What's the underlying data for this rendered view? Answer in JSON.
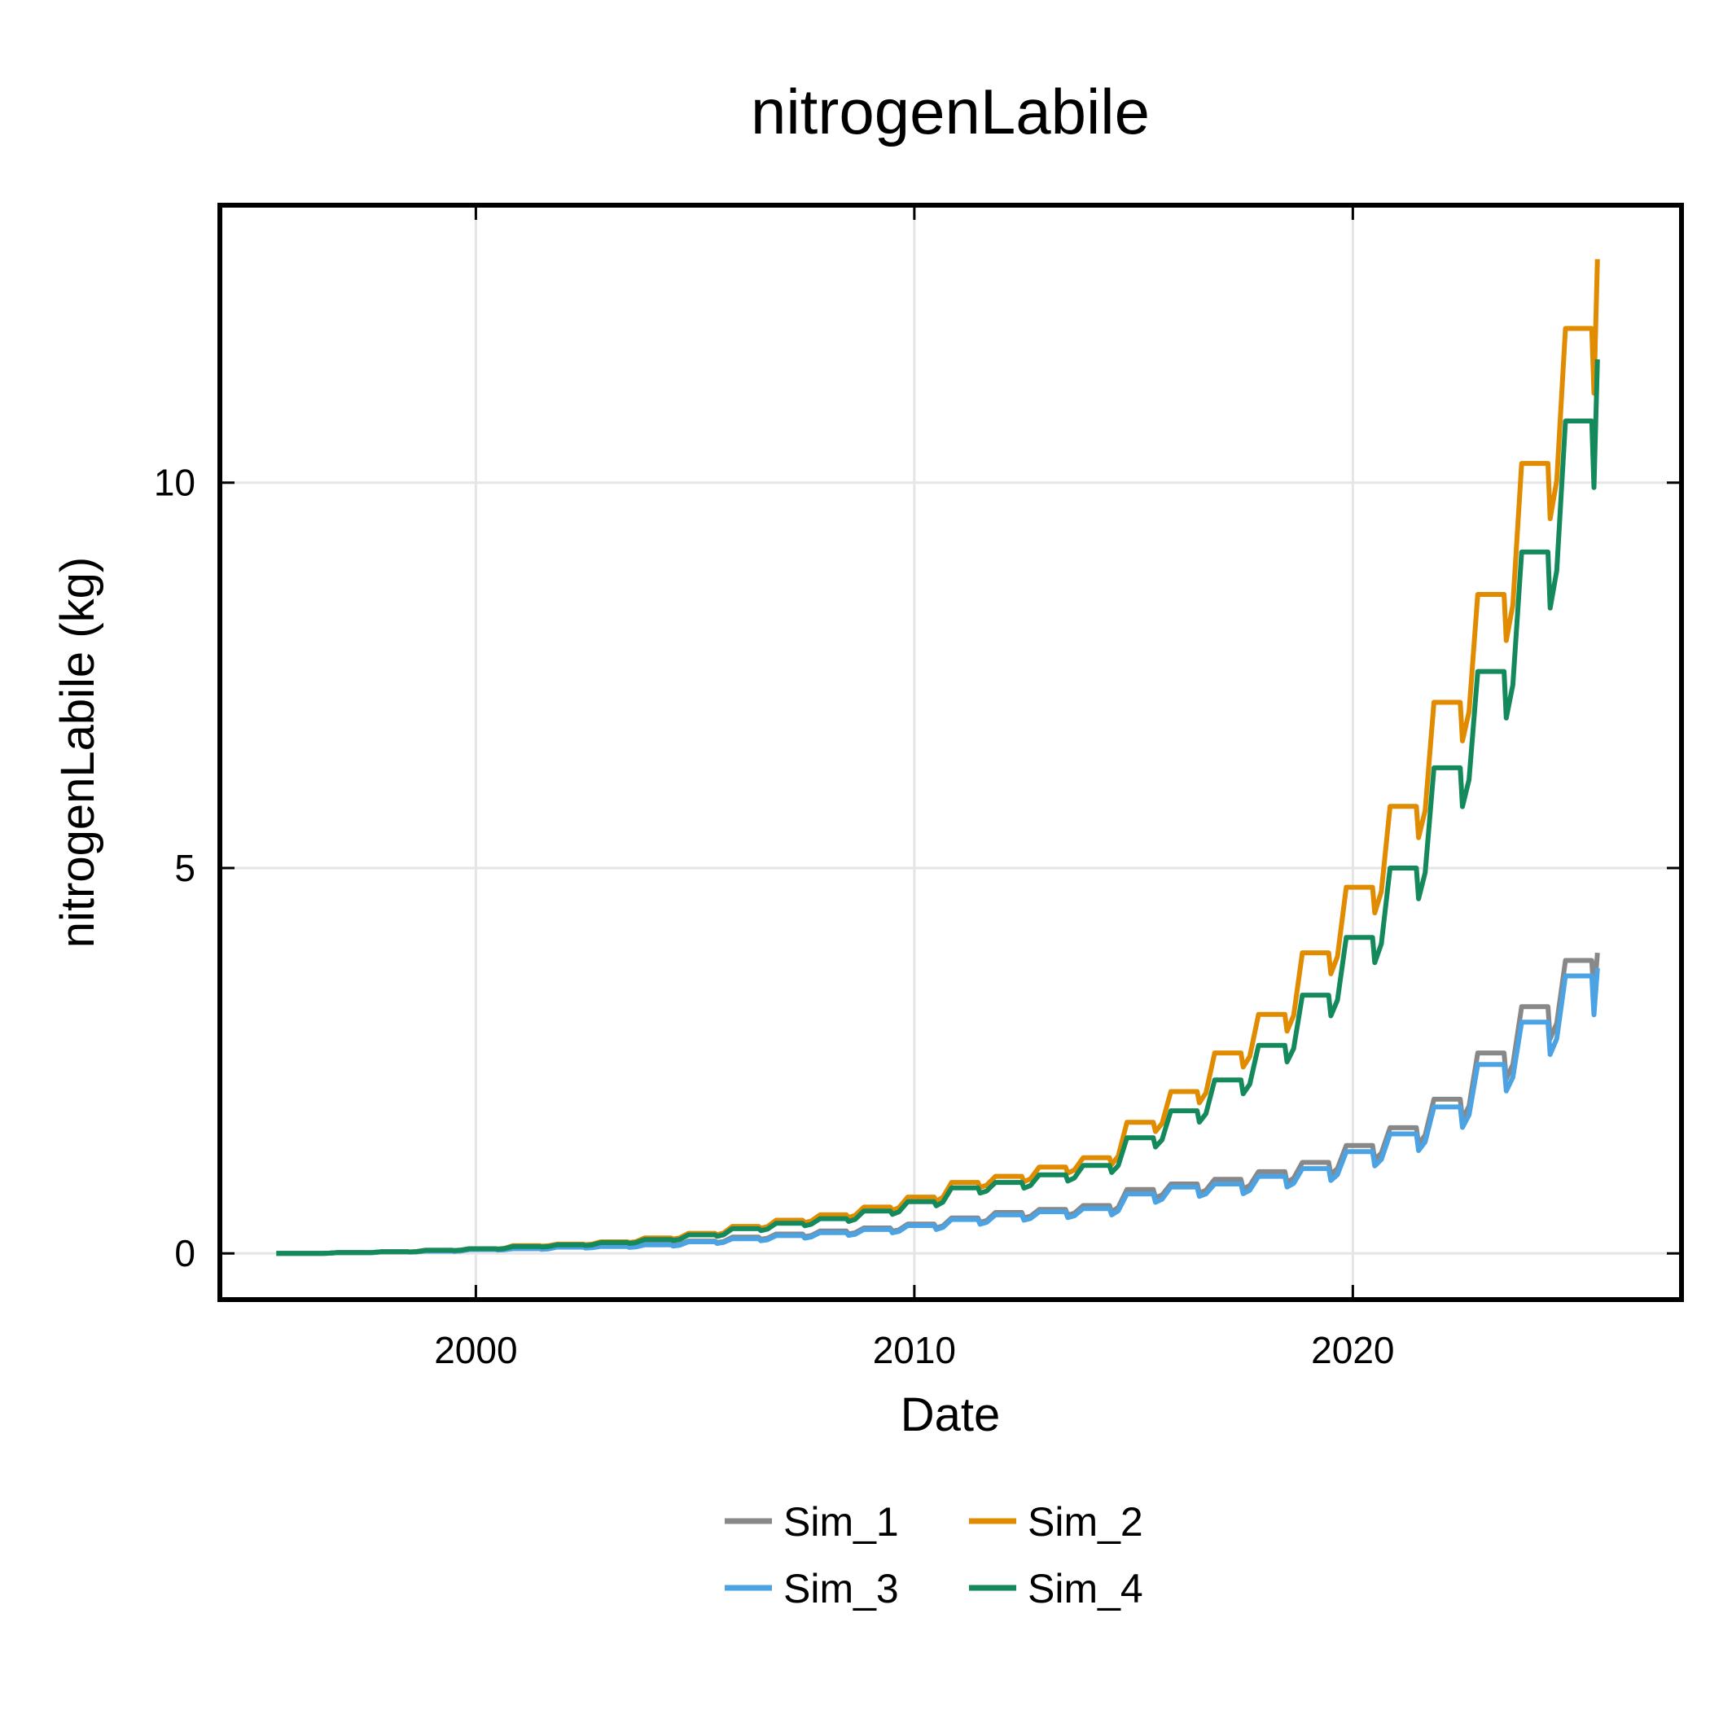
{
  "chart_data": {
    "type": "line",
    "title": "nitrogenLabile",
    "xlabel": "Date",
    "ylabel": "nitrogenLabile (kg)",
    "xlim": [
      "1994-03-01",
      "2027-07-01"
    ],
    "ylim": [
      -0.6,
      13.6
    ],
    "x_ticks": [
      "2000-01-01",
      "2010-01-01",
      "2020-01-01"
    ],
    "x_tick_labels": [
      "2000",
      "2010",
      "2020"
    ],
    "y_ticks": [
      0,
      5,
      10
    ],
    "y_tick_labels": [
      "0",
      "5",
      "10"
    ],
    "grid": true,
    "legend_position": "bottom",
    "legend_columns": 2,
    "series": [
      {
        "name": "Sim_1",
        "color": "#888888",
        "x_start_year": 1996,
        "x_end_year": 2025,
        "final_value": 3.9,
        "seasonal_drop_fraction": 0.13,
        "annual_peaks": [
          0.0,
          0.01,
          0.02,
          0.03,
          0.05,
          0.07,
          0.09,
          0.1,
          0.12,
          0.16,
          0.21,
          0.25,
          0.29,
          0.33,
          0.38,
          0.46,
          0.53,
          0.57,
          0.62,
          0.83,
          0.9,
          0.96,
          1.06,
          1.18,
          1.4,
          1.63,
          2.0,
          2.6,
          3.2,
          3.8
        ]
      },
      {
        "name": "Sim_2",
        "color": "#e08b00",
        "x_start_year": 1996,
        "x_end_year": 2025,
        "final_value": 12.9,
        "seasonal_drop_fraction": 0.07,
        "annual_peaks": [
          0.0,
          0.01,
          0.02,
          0.04,
          0.06,
          0.1,
          0.12,
          0.15,
          0.2,
          0.26,
          0.35,
          0.43,
          0.5,
          0.6,
          0.73,
          0.92,
          1.0,
          1.12,
          1.24,
          1.7,
          2.1,
          2.6,
          3.1,
          3.9,
          4.75,
          5.8,
          7.15,
          8.55,
          10.25,
          12.0
        ]
      },
      {
        "name": "Sim_3",
        "color": "#4ba3e3",
        "x_start_year": 1996,
        "x_end_year": 2025,
        "final_value": 3.7,
        "seasonal_drop_fraction": 0.14,
        "annual_peaks": [
          0.0,
          0.01,
          0.02,
          0.03,
          0.05,
          0.06,
          0.08,
          0.09,
          0.11,
          0.15,
          0.19,
          0.23,
          0.27,
          0.31,
          0.36,
          0.44,
          0.5,
          0.54,
          0.58,
          0.77,
          0.86,
          0.9,
          1.0,
          1.1,
          1.32,
          1.55,
          1.9,
          2.45,
          3.0,
          3.6
        ]
      },
      {
        "name": "Sim_4",
        "color": "#148a5c",
        "x_start_year": 1996,
        "x_end_year": 2025,
        "final_value": 11.6,
        "seasonal_drop_fraction": 0.08,
        "annual_peaks": [
          0.0,
          0.01,
          0.02,
          0.04,
          0.06,
          0.09,
          0.11,
          0.14,
          0.18,
          0.24,
          0.32,
          0.39,
          0.45,
          0.55,
          0.67,
          0.85,
          0.92,
          1.02,
          1.14,
          1.5,
          1.85,
          2.25,
          2.7,
          3.35,
          4.1,
          5.0,
          6.3,
          7.55,
          9.1,
          10.8
        ]
      }
    ]
  }
}
